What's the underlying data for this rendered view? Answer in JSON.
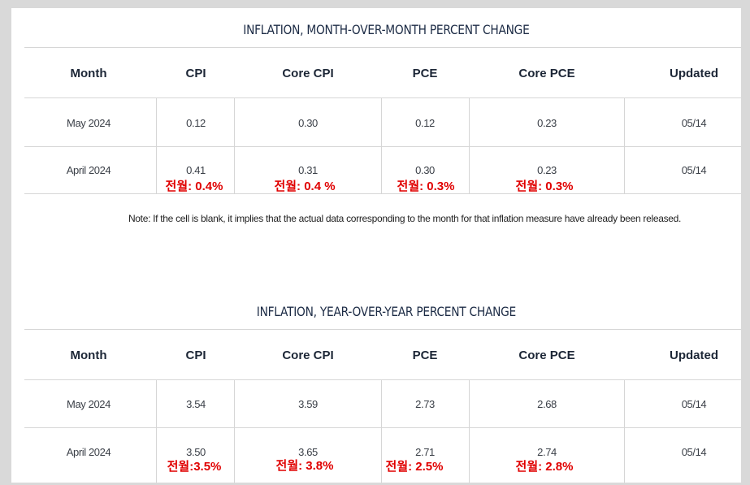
{
  "mom": {
    "title": "INFLATION, MONTH-OVER-MONTH PERCENT CHANGE",
    "headers": [
      "Month",
      "CPI",
      "Core CPI",
      "PCE",
      "Core PCE",
      "Updated"
    ],
    "rows": [
      {
        "cells": [
          "May 2024",
          "0.12",
          "0.30",
          "0.12",
          "0.23",
          "05/14"
        ]
      },
      {
        "cells": [
          "April 2024",
          "0.41",
          "0.31",
          "0.30",
          "0.23",
          "05/14"
        ],
        "notes": [
          "전월: 0.4%",
          "전월: 0.4 %",
          "전월: 0.3%",
          "전월: 0.3%"
        ]
      }
    ]
  },
  "footnote": "Note: If the cell is blank, it implies that the actual data corresponding to the month for that inflation measure have already been released.",
  "yoy": {
    "title": "INFLATION, YEAR-OVER-YEAR PERCENT CHANGE",
    "headers": [
      "Month",
      "CPI",
      "Core CPI",
      "PCE",
      "Core PCE",
      "Updated"
    ],
    "rows": [
      {
        "cells": [
          "May 2024",
          "3.54",
          "3.59",
          "2.73",
          "2.68",
          "05/14"
        ]
      },
      {
        "cells": [
          "April 2024",
          "3.50",
          "3.65",
          "2.71",
          "2.74",
          "05/14"
        ],
        "notes": [
          "전월:3.5%",
          "전월: 3.8%",
          "전월: 2.5%",
          "전월: 2.8%"
        ]
      }
    ]
  },
  "colors": {
    "annotation": "#e00000",
    "title": "#1c2b45",
    "grid": "#d6d6d6"
  }
}
